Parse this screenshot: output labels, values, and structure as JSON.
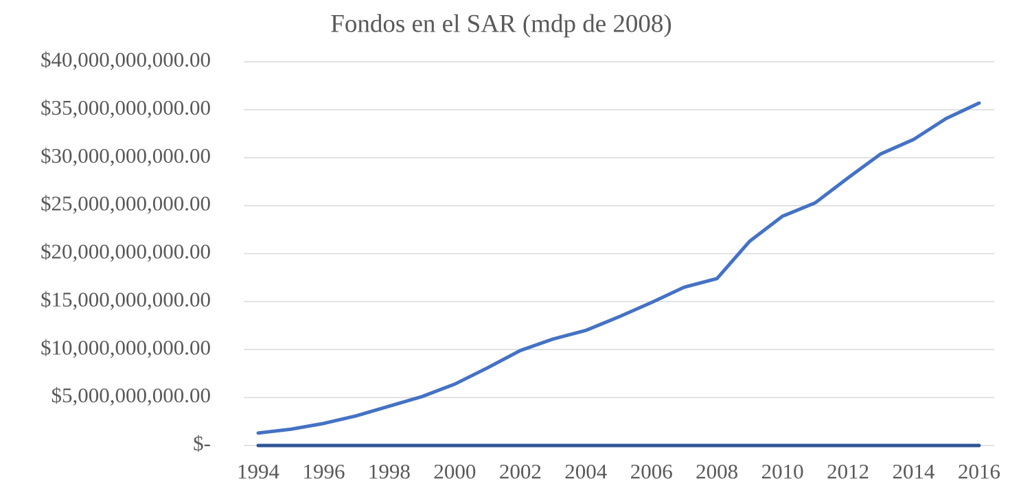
{
  "chart_data": {
    "type": "line",
    "title": "Fondos en el SAR (mdp de 2008)",
    "x": [
      1994,
      1995,
      1996,
      1997,
      1998,
      1999,
      2000,
      2001,
      2002,
      2003,
      2004,
      2005,
      2006,
      2007,
      2008,
      2009,
      2010,
      2011,
      2012,
      2013,
      2014,
      2015,
      2016
    ],
    "series": [
      {
        "color": "#4472c4",
        "values": [
          1300000000,
          1700000000,
          2300000000,
          3100000000,
          4100000000,
          5100000000,
          6400000000,
          8100000000,
          9900000000,
          11100000000,
          12000000000,
          13400000000,
          14900000000,
          16500000000,
          17400000000,
          21300000000,
          23900000000,
          25300000000,
          27900000000,
          30400000000,
          31900000000,
          34100000000,
          35700000000
        ]
      },
      {
        "color": "#2f5597",
        "values": [
          0,
          0,
          0,
          0,
          0,
          0,
          0,
          0,
          0,
          0,
          0,
          0,
          0,
          0,
          0,
          0,
          0,
          0,
          0,
          0,
          0,
          0,
          0
        ]
      }
    ],
    "xlim": [
      1994,
      2016
    ],
    "xticks": [
      1994,
      1996,
      1998,
      2000,
      2002,
      2004,
      2006,
      2008,
      2010,
      2012,
      2014,
      2016
    ],
    "ylim": [
      0,
      40000000000
    ],
    "yticks": [
      {
        "value": 0,
        "label": "$-"
      },
      {
        "value": 5000000000,
        "label": "$5,000,000,000.00"
      },
      {
        "value": 10000000000,
        "label": "$10,000,000,000.00"
      },
      {
        "value": 15000000000,
        "label": "$15,000,000,000.00"
      },
      {
        "value": 20000000000,
        "label": "$20,000,000,000.00"
      },
      {
        "value": 25000000000,
        "label": "$25,000,000,000.00"
      },
      {
        "value": 30000000000,
        "label": "$30,000,000,000.00"
      },
      {
        "value": 35000000000,
        "label": "$35,000,000,000.00"
      },
      {
        "value": 40000000000,
        "label": "$40,000,000,000.00"
      }
    ],
    "grid": true
  }
}
